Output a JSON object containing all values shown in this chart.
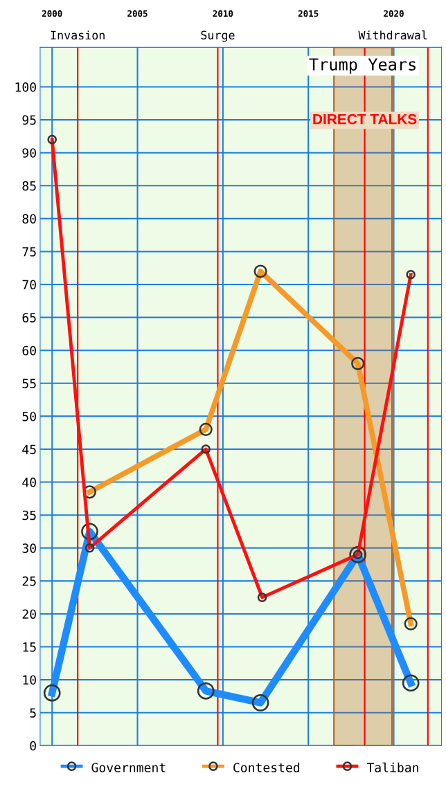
{
  "chart_data": {
    "type": "line",
    "xlim": [
      1999.3,
      2022.8
    ],
    "xticks": [
      2000,
      2005,
      2010,
      2015,
      2020
    ],
    "ylim": [
      0,
      106
    ],
    "yticks": [
      0,
      5,
      10,
      15,
      20,
      25,
      30,
      35,
      40,
      45,
      50,
      55,
      60,
      65,
      70,
      75,
      80,
      85,
      90,
      95,
      100
    ],
    "grid": true,
    "legend": "bottom",
    "marker": "circle",
    "line_style": "solid",
    "series": [
      {
        "name": "Government",
        "color": "#1e8cff",
        "x": [
          2000,
          2002.2,
          2009,
          2012.2,
          2017.9,
          2021
        ],
        "values": [
          8,
          32.5,
          8.3,
          6.5,
          29,
          9.5
        ]
      },
      {
        "name": "Contested",
        "color": "#f59a2a",
        "x": [
          2002.2,
          2009,
          2012.2,
          2017.9,
          2021
        ],
        "values": [
          38.5,
          48,
          72,
          58,
          18.5
        ]
      },
      {
        "name": "Taliban",
        "color": "#ff1010",
        "x": [
          2000,
          2002.2,
          2009,
          2012.3,
          2017.9,
          2021
        ],
        "values": [
          92,
          30,
          45,
          22.5,
          29,
          71.5
        ]
      }
    ],
    "ref_lines": [
      {
        "axis": "x",
        "value": 2001.5,
        "label": "Invasion",
        "color": "#ff0000"
      },
      {
        "axis": "x",
        "value": 2009.7,
        "label": "Surge",
        "color": "#ff0000"
      },
      {
        "axis": "x",
        "value": 2018.3,
        "label": "DIRECT TALKS",
        "color": "#ff0000"
      },
      {
        "axis": "x",
        "value": 2022,
        "label": "Withdrawal",
        "color": "#ff0000"
      }
    ],
    "bands": [
      {
        "axis": "x",
        "from": 2016.5,
        "to": 2019.9,
        "label": "Trump Years",
        "color": "#b5651d"
      }
    ]
  }
}
